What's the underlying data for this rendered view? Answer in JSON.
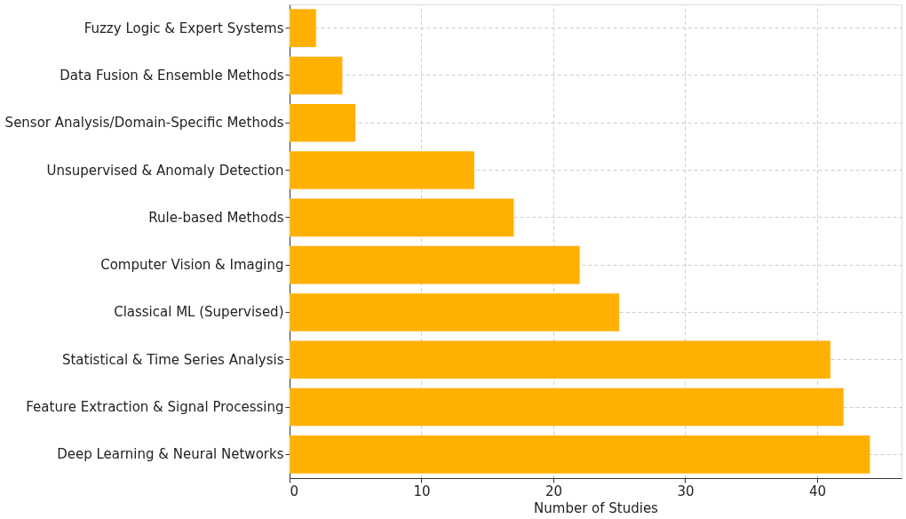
{
  "chart_data": {
    "type": "bar",
    "orientation": "horizontal",
    "xlabel": "Number of Studies",
    "categories": [
      "Fuzzy Logic & Expert Systems",
      "Data Fusion & Ensemble Methods",
      "Sensor Analysis/Domain-Specific Methods",
      "Unsupervised & Anomaly Detection",
      "Rule-based Methods",
      "Computer Vision & Imaging",
      "Classical ML (Supervised)",
      "Statistical & Time Series Analysis",
      "Feature Extraction & Signal Processing",
      "Deep Learning & Neural Networks"
    ],
    "values": [
      2,
      4,
      5,
      14,
      17,
      22,
      25,
      41,
      42,
      44
    ],
    "color": "#ffb000",
    "xlim": [
      0,
      46.4
    ],
    "xticks": [
      0,
      10,
      20,
      30,
      40
    ],
    "grid": true
  }
}
